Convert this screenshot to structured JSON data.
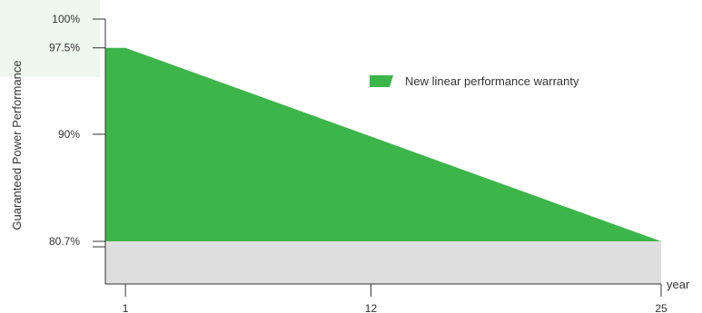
{
  "chart_data": {
    "type": "area",
    "title": "",
    "xlabel": "year",
    "ylabel": "Guaranteed Power Performance",
    "x_ticks": [
      {
        "value": 1,
        "label": "1"
      },
      {
        "value": 12,
        "label": "12"
      },
      {
        "value": 25,
        "label": "25"
      }
    ],
    "y_ticks": [
      {
        "value": 100,
        "label": "100%"
      },
      {
        "value": 97.5,
        "label": "97.5%"
      },
      {
        "value": 90,
        "label": "90%"
      },
      {
        "value": 80.7,
        "label": "80.7%"
      }
    ],
    "xlim": [
      0.1,
      25
    ],
    "ylim": [
      77,
      100
    ],
    "baseline_value": 80.7,
    "series": [
      {
        "name": "New linear performance warranty",
        "color": "#3cb54a",
        "x": [
          0.1,
          1,
          25
        ],
        "y": [
          97.5,
          97.5,
          80.7
        ]
      }
    ],
    "baseline_fill_color": "#dedede",
    "highlight_color": "#eef8ee",
    "legend_position": "top-right",
    "grid": false
  }
}
